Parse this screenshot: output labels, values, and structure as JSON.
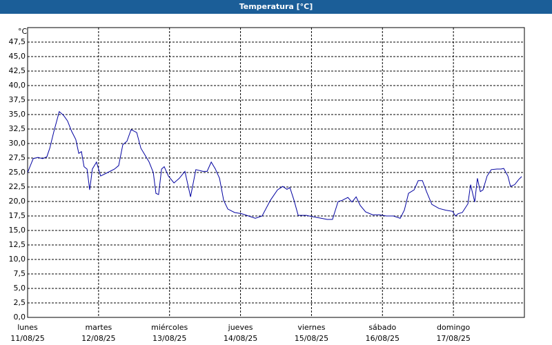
{
  "chart_data": {
    "type": "line",
    "title": "Temperatura [°C]",
    "y_unit": "°C",
    "xlim": [
      0,
      168
    ],
    "ylim": [
      0,
      50
    ],
    "grid": true,
    "xticks": [
      {
        "value": 0,
        "label": "lunes",
        "date": "11/08/25"
      },
      {
        "value": 24,
        "label": "martes",
        "date": "12/08/25"
      },
      {
        "value": 48,
        "label": "miércoles",
        "date": "13/08/25"
      },
      {
        "value": 72,
        "label": "jueves",
        "date": "14/08/25"
      },
      {
        "value": 96,
        "label": "viernes",
        "date": "15/08/25"
      },
      {
        "value": 120,
        "label": "sábado",
        "date": "16/08/25"
      },
      {
        "value": 144,
        "label": "domingo",
        "date": "17/08/25"
      }
    ],
    "yticks": [
      {
        "value": 0,
        "label": "0,0"
      },
      {
        "value": 2.5,
        "label": "2,5"
      },
      {
        "value": 5,
        "label": "5,0"
      },
      {
        "value": 7.5,
        "label": "7,5"
      },
      {
        "value": 10,
        "label": "10,0"
      },
      {
        "value": 12.5,
        "label": "12,5"
      },
      {
        "value": 15,
        "label": "15,0"
      },
      {
        "value": 17.5,
        "label": "17,5"
      },
      {
        "value": 20,
        "label": "20,0"
      },
      {
        "value": 22.5,
        "label": "22,5"
      },
      {
        "value": 25,
        "label": "25,0"
      },
      {
        "value": 27.5,
        "label": "27,5"
      },
      {
        "value": 30,
        "label": "30,0"
      },
      {
        "value": 32.5,
        "label": "32,5"
      },
      {
        "value": 35,
        "label": "35,0"
      },
      {
        "value": 37.5,
        "label": "37,5"
      },
      {
        "value": 40,
        "label": "40,0"
      },
      {
        "value": 42.5,
        "label": "42,5"
      },
      {
        "value": 45,
        "label": "45,0"
      },
      {
        "value": 47.5,
        "label": "47,5"
      }
    ],
    "x": [
      0,
      1.9,
      3.5,
      5.1,
      6.5,
      7.5,
      8.9,
      10.7,
      12.1,
      13.5,
      14.9,
      16.3,
      17.3,
      18.2,
      19.1,
      20.1,
      21.0,
      21.9,
      23.3,
      24.7,
      27.1,
      29.4,
      30.8,
      32.2,
      33.6,
      35.0,
      36.9,
      38.3,
      39.7,
      41.1,
      42.5,
      43.4,
      44.3,
      45.3,
      46.2,
      47.6,
      49.5,
      51.3,
      53.2,
      55.1,
      56.9,
      59.3,
      60.7,
      62.1,
      63.5,
      64.9,
      66.3,
      67.7,
      70.0,
      72.3,
      74.7,
      77.0,
      79.3,
      82.1,
      84.5,
      86.3,
      87.7,
      88.7,
      90.1,
      91.5,
      94.3,
      97.1,
      99.4,
      101.3,
      103.1,
      105.0,
      106.4,
      108.3,
      109.7,
      111.1,
      112.5,
      114.3,
      116.7,
      119.0,
      121.3,
      123.7,
      126.0,
      127.4,
      128.8,
      130.7,
      132.1,
      133.5,
      134.9,
      136.7,
      139.1,
      141.4,
      143.7,
      144.7,
      145.6,
      147.0,
      148.9,
      149.8,
      151.2,
      152.1,
      153.1,
      154.0,
      155.4,
      156.8,
      158.7,
      160.1,
      161.0,
      162.4,
      163.3,
      164.7,
      166.1,
      167.1
    ],
    "series": [
      {
        "name": "Temperatura",
        "color": "#0000a0",
        "values": [
          25.0,
          27.4,
          27.6,
          27.4,
          27.7,
          29.2,
          32.1,
          35.5,
          34.9,
          33.9,
          32.1,
          30.7,
          28.3,
          28.6,
          26.0,
          25.6,
          22.0,
          25.6,
          26.8,
          24.4,
          25.0,
          25.6,
          26.2,
          29.8,
          30.4,
          32.4,
          31.9,
          29.2,
          28.0,
          26.8,
          25.0,
          21.4,
          21.2,
          25.6,
          26.0,
          24.4,
          23.2,
          24.0,
          25.2,
          20.8,
          25.5,
          25.2,
          25.2,
          26.8,
          25.6,
          24.0,
          20.2,
          18.7,
          18.1,
          17.9,
          17.5,
          17.1,
          17.5,
          20.2,
          22.0,
          22.6,
          22.1,
          22.4,
          20.2,
          17.6,
          17.6,
          17.3,
          17.1,
          16.9,
          16.9,
          20.0,
          20.2,
          20.7,
          19.9,
          20.8,
          19.3,
          18.2,
          17.7,
          17.7,
          17.5,
          17.5,
          17.1,
          18.5,
          21.4,
          22.0,
          23.6,
          23.6,
          21.7,
          19.5,
          18.8,
          18.5,
          18.3,
          17.5,
          17.9,
          18.1,
          19.6,
          22.9,
          19.9,
          24.0,
          21.7,
          22.0,
          24.4,
          25.5,
          25.6,
          25.6,
          25.7,
          24.4,
          22.6,
          22.9,
          23.8,
          24.3
        ]
      }
    ]
  }
}
